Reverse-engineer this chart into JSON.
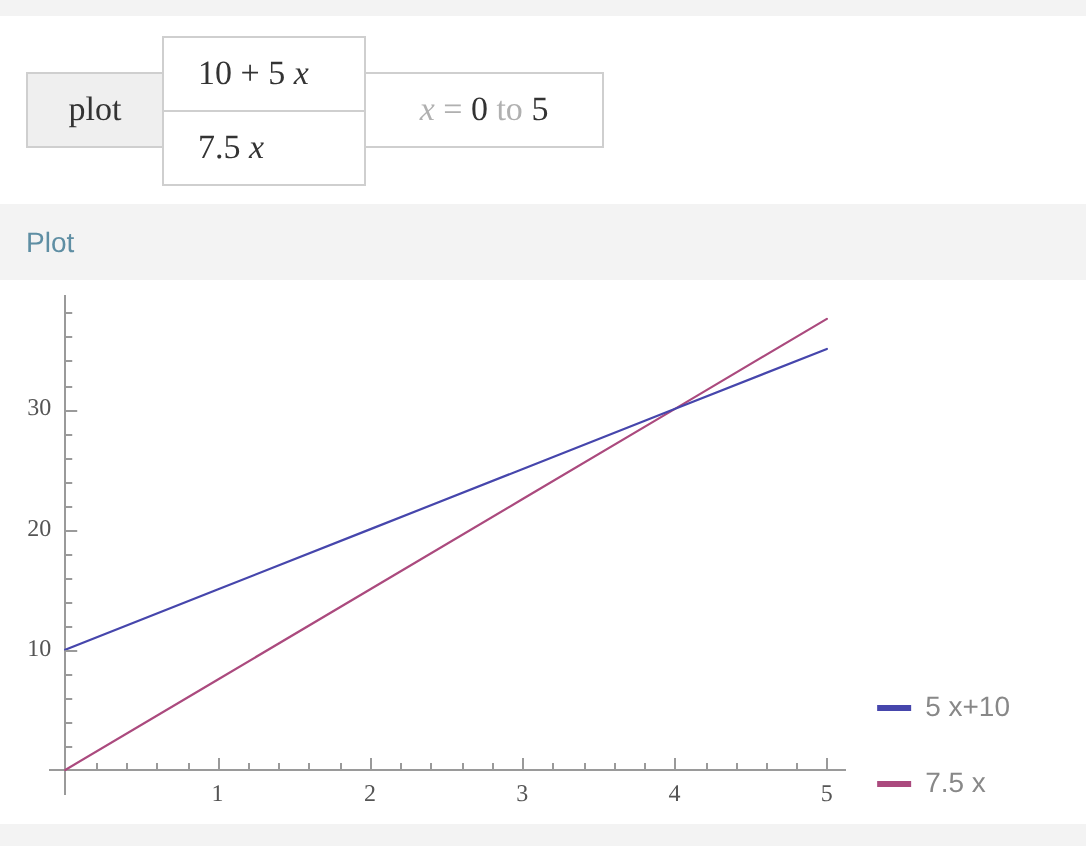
{
  "chart_data": {
    "type": "line",
    "title": "Plot",
    "annotations": [
      "plot",
      "10 + 5 x",
      "7.5 x",
      "x = 0 to 5"
    ],
    "x": [
      0,
      1,
      2,
      3,
      4,
      5
    ],
    "series": [
      {
        "name": "5 x+10",
        "color": "#4646ac",
        "values": [
          10,
          15,
          20,
          25,
          30,
          35
        ]
      },
      {
        "name": "7.5 x",
        "color": "#ab4a7e",
        "values": [
          0,
          7.5,
          15,
          22.5,
          30,
          37.5
        ]
      }
    ],
    "xlim": [
      -0.1,
      5.12
    ],
    "ylim": [
      -2,
      39.4
    ],
    "xticks": [
      {
        "value": 0.2,
        "label": null
      },
      {
        "value": 0.4,
        "label": null
      },
      {
        "value": 0.6,
        "label": null
      },
      {
        "value": 0.8,
        "label": null
      },
      1,
      {
        "value": 1.2,
        "label": null
      },
      {
        "value": 1.4,
        "label": null
      },
      {
        "value": 1.6,
        "label": null
      },
      {
        "value": 1.8,
        "label": null
      },
      2,
      {
        "value": 2.2,
        "label": null
      },
      {
        "value": 2.4,
        "label": null
      },
      {
        "value": 2.6,
        "label": null
      },
      {
        "value": 2.8,
        "label": null
      },
      3,
      {
        "value": 3.2,
        "label": null
      },
      {
        "value": 3.4,
        "label": null
      },
      {
        "value": 3.6,
        "label": null
      },
      {
        "value": 3.8,
        "label": null
      },
      4,
      {
        "value": 4.2,
        "label": null
      },
      {
        "value": 4.4,
        "label": null
      },
      {
        "value": 4.6,
        "label": null
      },
      {
        "value": 4.8,
        "label": null
      },
      5
    ],
    "yticks": [
      {
        "value": 2,
        "label": null
      },
      {
        "value": 4,
        "label": null
      },
      {
        "value": 6,
        "label": null
      },
      {
        "value": 8,
        "label": null
      },
      10,
      {
        "value": 12,
        "label": null
      },
      {
        "value": 14,
        "label": null
      },
      {
        "value": 16,
        "label": null
      },
      {
        "value": 18,
        "label": null
      },
      20,
      {
        "value": 22,
        "label": null
      },
      {
        "value": 24,
        "label": null
      },
      {
        "value": 26,
        "label": null
      },
      {
        "value": 28,
        "label": null
      },
      30,
      {
        "value": 32,
        "label": null
      },
      {
        "value": 34,
        "label": null
      },
      {
        "value": 36,
        "label": null
      },
      {
        "value": 38,
        "label": null
      }
    ],
    "legend": "bottom right"
  }
}
